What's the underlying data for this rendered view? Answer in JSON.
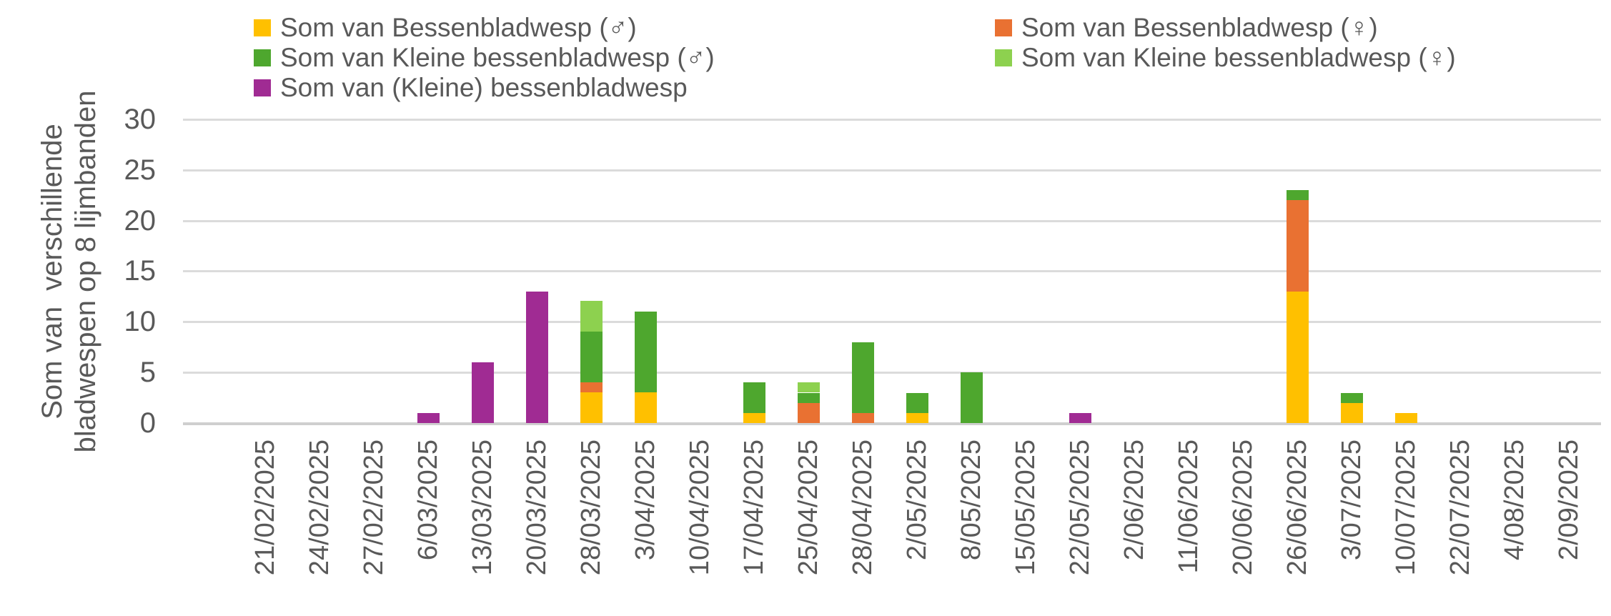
{
  "chart_data": {
    "type": "bar",
    "stacked": true,
    "legend_position": "top",
    "gridlines": true,
    "ylabel_line1": "Som van  verschillende",
    "ylabel_line2": "bladwespen op 8 lijmbanden",
    "y_ticks": [
      0,
      5,
      10,
      15,
      20,
      25,
      30
    ],
    "ylim": [
      0,
      30
    ],
    "categories": [
      "21/02/2025",
      "24/02/2025",
      "27/02/2025",
      "6/03/2025",
      "13/03/2025",
      "20/03/2025",
      "28/03/2025",
      "3/04/2025",
      "10/04/2025",
      "17/04/2025",
      "25/04/2025",
      "28/04/2025",
      "2/05/2025",
      "8/05/2025",
      "15/05/2025",
      "22/05/2025",
      "2/06/2025",
      "11/06/2025",
      "20/06/2025",
      "26/06/2025",
      "3/07/2025",
      "10/07/2025",
      "22/07/2025",
      "4/08/2025",
      "2/09/2025"
    ],
    "series": [
      {
        "name": "Som van Bessenbladwesp (♂)",
        "color": "#FFC000",
        "values": [
          0,
          0,
          0,
          0,
          0,
          0,
          3,
          3,
          0,
          1,
          0,
          0,
          1,
          0,
          0,
          0,
          0,
          0,
          0,
          13,
          2,
          1,
          0,
          0,
          0
        ]
      },
      {
        "name": "Som van Bessenbladwesp (♀)",
        "color": "#E97132",
        "values": [
          0,
          0,
          0,
          0,
          0,
          0,
          1,
          0,
          0,
          0,
          2,
          1,
          0,
          0,
          0,
          0,
          0,
          0,
          0,
          9,
          0,
          0,
          0,
          0,
          0
        ]
      },
      {
        "name": "Som van Kleine bessenbladwesp (♂)",
        "color": "#4EA72E",
        "values": [
          0,
          0,
          0,
          0,
          0,
          0,
          5,
          8,
          0,
          3,
          1,
          7,
          2,
          5,
          0,
          0,
          0,
          0,
          0,
          1,
          1,
          0,
          0,
          0,
          0
        ]
      },
      {
        "name": "Som van Kleine bessenbladwesp (♀)",
        "color": "#8DD14F",
        "values": [
          0,
          0,
          0,
          0,
          0,
          0,
          3,
          0,
          0,
          0,
          1,
          0,
          0,
          0,
          0,
          0,
          0,
          0,
          0,
          0,
          0,
          0,
          0,
          0,
          0
        ]
      },
      {
        "name": "Som van (Kleine) bessenbladwesp",
        "color": "#A02B93",
        "values": [
          0,
          0,
          0,
          1,
          6,
          13,
          0,
          0,
          0,
          0,
          0,
          0,
          0,
          0,
          0,
          1,
          0,
          0,
          0,
          0,
          0,
          0,
          0,
          0,
          0
        ]
      }
    ]
  }
}
